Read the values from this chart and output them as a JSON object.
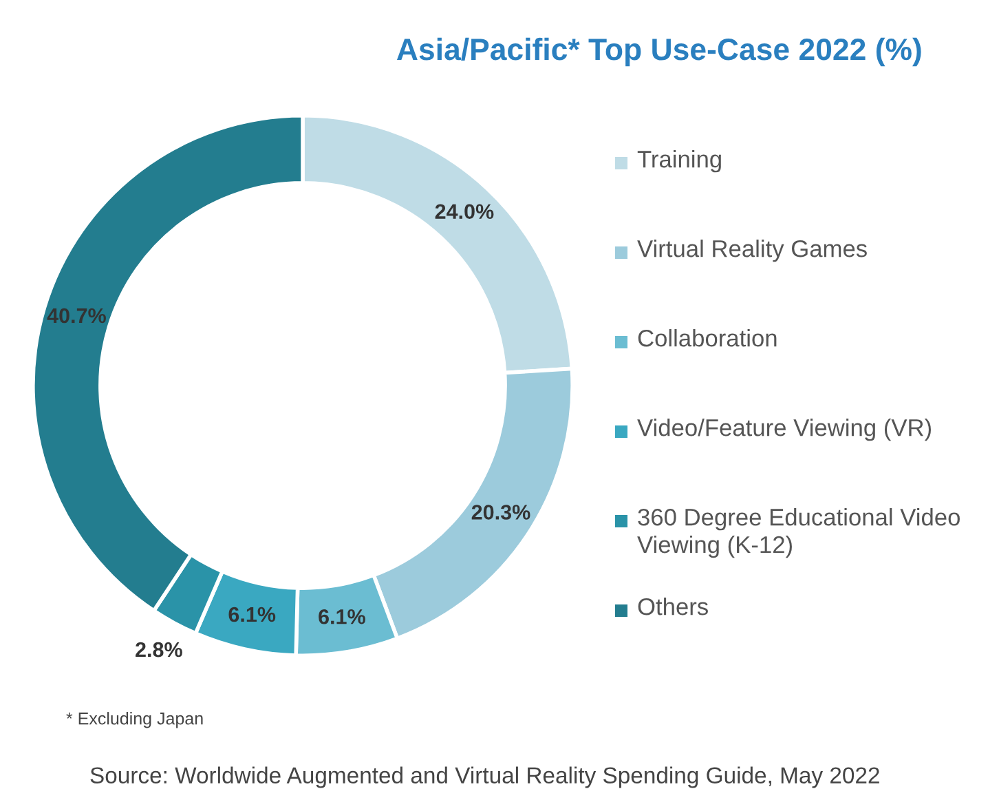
{
  "chart_data": {
    "type": "donut",
    "title": "Asia/Pacific* Top Use-Case 2022 (%)",
    "categories": [
      "Training",
      "Virtual Reality Games",
      "Collaboration",
      "Video/Feature Viewing (VR)",
      "360 Degree Educational Video Viewing (K-12)",
      "Others"
    ],
    "values": [
      24.0,
      20.3,
      6.1,
      6.1,
      2.8,
      40.7
    ],
    "colors": [
      "#bfdce6",
      "#9ccbdc",
      "#6bbdd2",
      "#3aa8c1",
      "#2a93a8",
      "#237d8f"
    ],
    "value_labels": [
      "24.0%",
      "20.3%",
      "6.1%",
      "6.1%",
      "2.8%",
      "40.7%"
    ],
    "legend": "right",
    "annotations": [
      "* Excluding Japan",
      "Source: Worldwide Augmented and Virtual Reality Spending Guide, May 2022"
    ]
  }
}
